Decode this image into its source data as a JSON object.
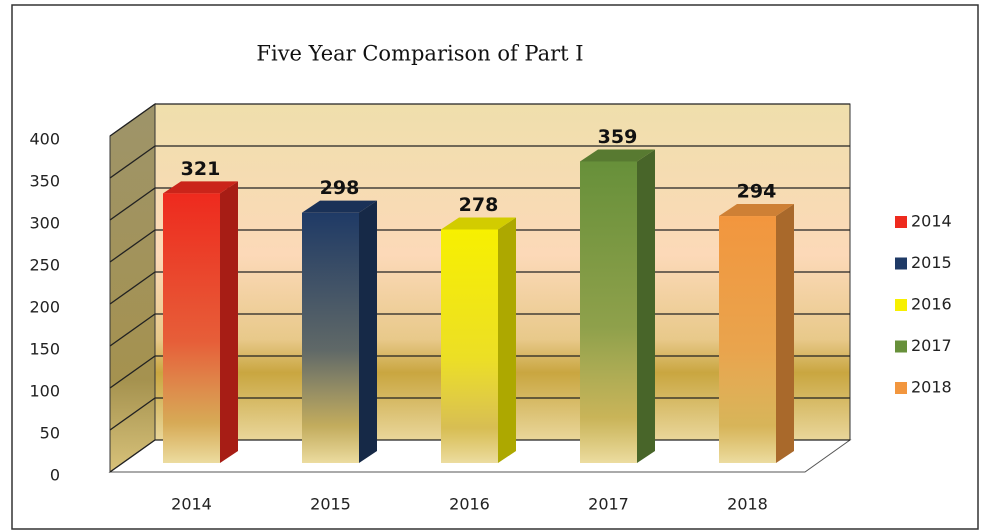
{
  "chart_data": {
    "type": "bar3d",
    "title": "Five Year Comparison of Part I",
    "categories": [
      "2014",
      "2015",
      "2016",
      "2017",
      "2018"
    ],
    "values": [
      321,
      298,
      278,
      359,
      294
    ],
    "colors": [
      "#ee2a1e",
      "#1f3a66",
      "#f7f000",
      "#67903a",
      "#f2963e"
    ],
    "ylim": [
      0,
      400
    ],
    "yticks": [
      0,
      50,
      100,
      150,
      200,
      250,
      300,
      350,
      400
    ],
    "grid": true,
    "legend": "right"
  }
}
